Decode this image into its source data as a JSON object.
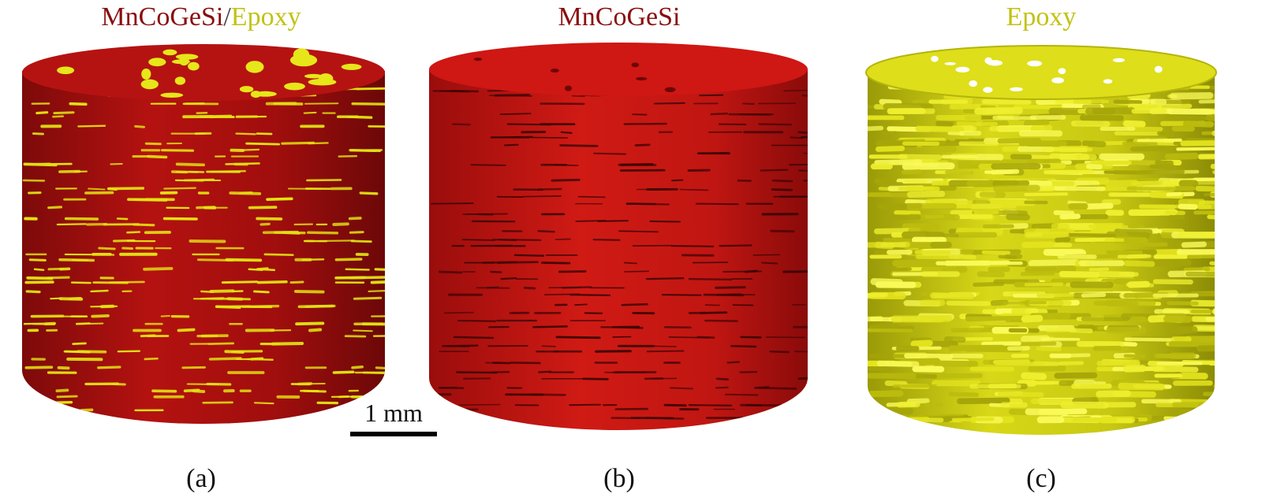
{
  "panels": [
    {
      "title_primary": "MnCoGeSi",
      "title_separator": "/",
      "title_secondary": "Epoxy",
      "caption": "(a)"
    },
    {
      "title_primary": "MnCoGeSi",
      "caption": "(b)"
    },
    {
      "title_secondary": "Epoxy",
      "caption": "(c)"
    }
  ],
  "scale_bar": {
    "label": "1 mm"
  },
  "colors": {
    "mncogesi": "#8a0d0d",
    "epoxy": "#c2c214",
    "render_red": "#b3100f",
    "render_yellow": "#dcdc10"
  }
}
